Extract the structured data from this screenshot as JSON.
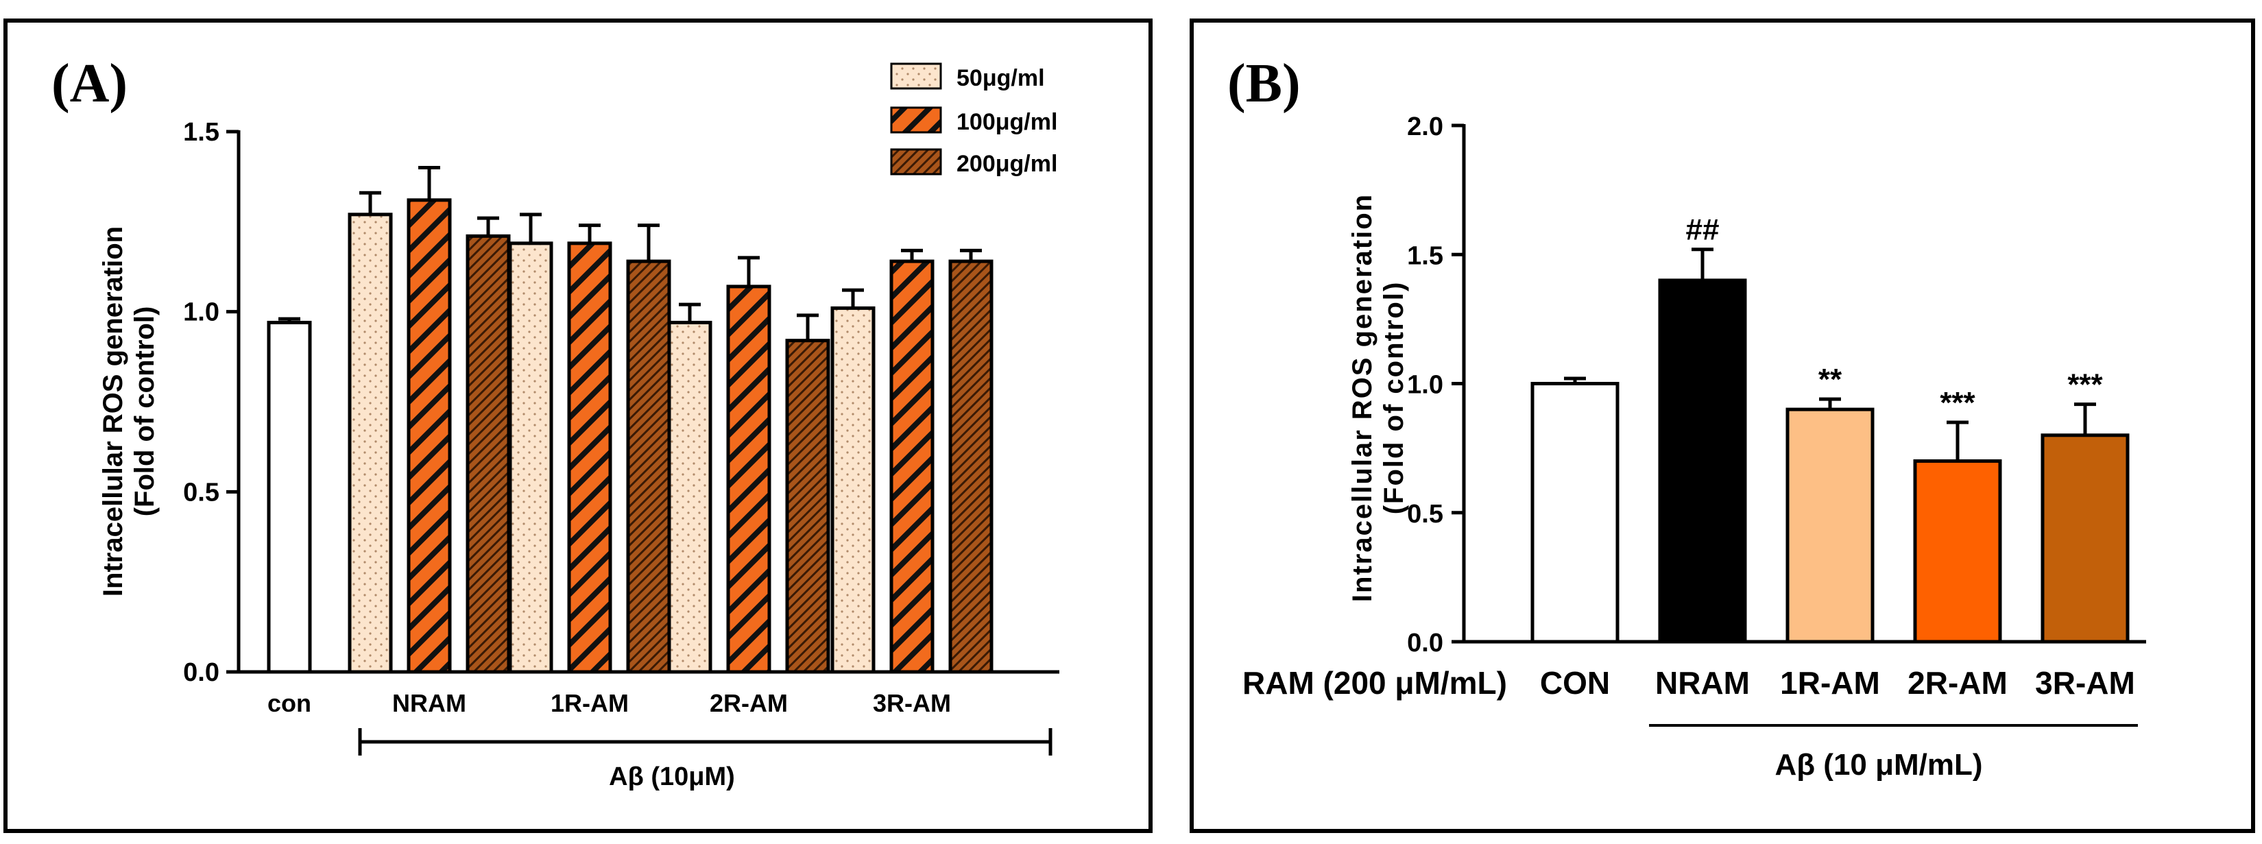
{
  "chart_data": [
    {
      "panel": "(A)",
      "type": "bar",
      "ylabel": [
        "Intracellular ROS generation",
        "(Fold of control)"
      ],
      "ylim": [
        0,
        1.5
      ],
      "yticks": [
        "0.0",
        "0.5",
        "1.0",
        "1.5"
      ],
      "yticks_values": [
        0,
        0.5,
        1.0,
        1.5
      ],
      "legend_position": "top-right",
      "control": {
        "label": "con",
        "value": 0.97,
        "error": 0.01,
        "color": "#ffffff"
      },
      "categories": [
        "NRAM",
        "1R-AM",
        "2R-AM",
        "3R-AM"
      ],
      "series": [
        {
          "name": "50μg/ml",
          "color": "#fce5cd",
          "pattern": "dots",
          "values": [
            1.27,
            1.19,
            0.97,
            1.01
          ],
          "errors": [
            0.06,
            0.08,
            0.05,
            0.05
          ]
        },
        {
          "name": "100μg/ml",
          "color": "#f26b1d",
          "pattern": "stripes",
          "values": [
            1.31,
            1.19,
            1.07,
            1.14
          ],
          "errors": [
            0.09,
            0.05,
            0.08,
            0.03
          ]
        },
        {
          "name": "200μg/ml",
          "color": "#a9551a",
          "pattern": "dense-stripes",
          "values": [
            1.21,
            1.14,
            0.92,
            1.14
          ],
          "errors": [
            0.05,
            0.1,
            0.07,
            0.03
          ]
        }
      ],
      "group_label": "Aβ (10μM)"
    },
    {
      "panel": "(B)",
      "type": "bar",
      "ylabel": [
        "Intracellular ROS generation",
        "(Fold of control)"
      ],
      "ylim": [
        0,
        2.0
      ],
      "yticks": [
        "0.0",
        "0.5",
        "1.0",
        "1.5",
        "2.0"
      ],
      "yticks_values": [
        0,
        0.5,
        1.0,
        1.5,
        2.0
      ],
      "row_label": "RAM (200 μM/mL)",
      "categories": [
        "CON",
        "NRAM",
        "1R-AM",
        "2R-AM",
        "3R-AM"
      ],
      "values": [
        1.0,
        1.4,
        0.9,
        0.7,
        0.8
      ],
      "errors": [
        0.02,
        0.12,
        0.04,
        0.15,
        0.12
      ],
      "colors": [
        "#ffffff",
        "#000000",
        "#fdbf85",
        "#fe6100",
        "#c2600a"
      ],
      "annotations": [
        "",
        "##",
        "**",
        "***",
        "***"
      ],
      "group_label": "Aβ (10 μM/mL)"
    }
  ]
}
